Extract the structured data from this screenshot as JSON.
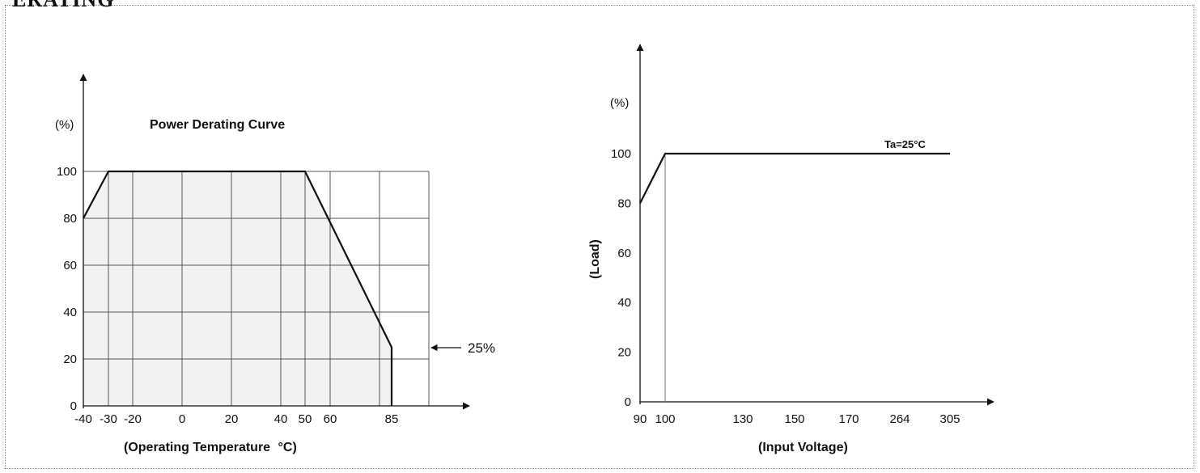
{
  "page": {
    "heading": "ERATING"
  },
  "chart_data": [
    {
      "type": "area",
      "title": "Power Derating Curve",
      "xlabel": "(Operating Temperature",
      "xlabel_unit": "°C)",
      "ylabel": "(%)",
      "x_ticks": [
        -40,
        -30,
        -20,
        0,
        20,
        40,
        50,
        60,
        85
      ],
      "x_tick_labels": [
        "-40",
        "-30",
        "-20",
        "0",
        "20",
        "40",
        "50",
        "60",
        "85"
      ],
      "y_ticks": [
        0,
        20,
        40,
        60,
        80,
        100
      ],
      "y_tick_labels": [
        "0",
        "20",
        "40",
        "60",
        "80",
        "100"
      ],
      "x_grid": [
        -30,
        -20,
        0,
        20,
        40,
        50,
        60,
        80,
        95
      ],
      "xlim": [
        -40,
        95
      ],
      "ylim": [
        0,
        100
      ],
      "grid": true,
      "series": [
        {
          "x": [
            -40,
            -30,
            50,
            85,
            85
          ],
          "y": [
            80,
            100,
            100,
            25,
            0
          ]
        }
      ],
      "annotations": [
        {
          "text": "25%",
          "x": 85,
          "y": 25
        }
      ],
      "colors": {
        "line": "#111111",
        "fill": "#ededed",
        "grid": "#555555"
      }
    },
    {
      "type": "line",
      "title": "",
      "xlabel": "(Input Voltage)",
      "ylabel": "(Load)",
      "yunit": "(%)",
      "x_ticks": [
        90,
        100,
        130,
        150,
        170,
        264,
        305
      ],
      "x_tick_labels": [
        "90",
        "100",
        "130",
        "150",
        "170",
        "264",
        "305"
      ],
      "y_ticks": [
        0,
        20,
        40,
        60,
        80,
        100
      ],
      "y_tick_labels": [
        "0",
        "20",
        "40",
        "60",
        "80",
        "100"
      ],
      "ylim": [
        0,
        100
      ],
      "grid": false,
      "series": [
        {
          "x": [
            90,
            100,
            305
          ],
          "y": [
            80,
            100,
            100
          ]
        }
      ],
      "annotations": [
        {
          "text": "Ta=25°C",
          "x": 264,
          "y": 100
        }
      ],
      "colors": {
        "line": "#111111",
        "guide": "#777777"
      }
    }
  ]
}
